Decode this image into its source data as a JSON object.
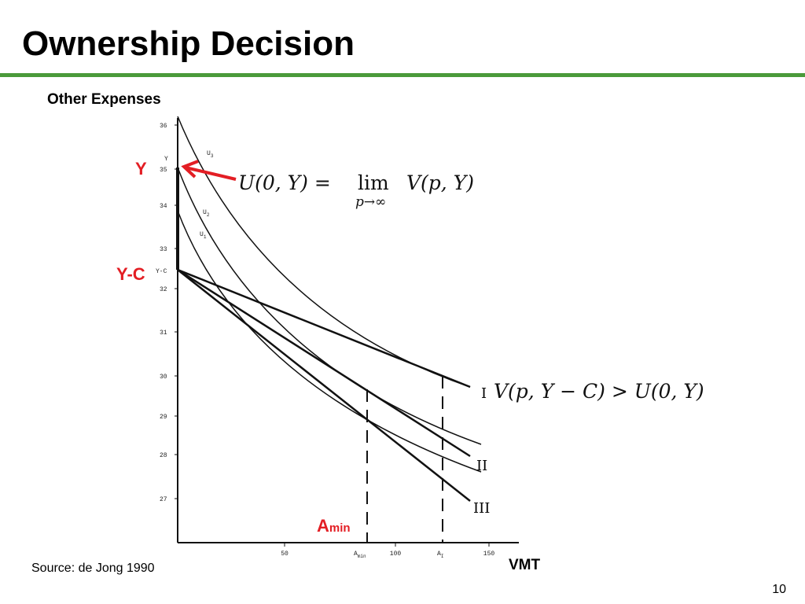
{
  "title": "Ownership Decision",
  "figure": {
    "y_axis_label": "Other Expenses",
    "x_axis_label": "VMT",
    "yticks": [
      "36",
      "35",
      "34",
      "33",
      "32",
      "31",
      "30",
      "29",
      "28",
      "27"
    ],
    "xticks": [
      "50",
      "100",
      "150"
    ],
    "y_marks": [
      "Y",
      "Y-C"
    ],
    "x_marks": [
      {
        "letter": "A",
        "sub": "min"
      },
      {
        "letter": "A",
        "sub": "I"
      }
    ],
    "curve_labels": [
      {
        "letter": "U",
        "sub": "3"
      },
      {
        "letter": "U",
        "sub": "2"
      },
      {
        "letter": "U",
        "sub": "1"
      }
    ],
    "line_labels": [
      "I",
      "II",
      "III"
    ],
    "annotations": {
      "y": "Y",
      "y_c": "Y-C",
      "a_min": {
        "letter": "A",
        "sub": "min"
      }
    },
    "formula_top": {
      "lhs": "U(0, Y) =",
      "op": "lim",
      "under": "p→∞",
      "rhs": "V(p, Y)"
    },
    "formula_right": "V(p, Y − C) > U(0, Y)"
  },
  "source": "Source: de Jong 1990",
  "page_number": "10"
}
